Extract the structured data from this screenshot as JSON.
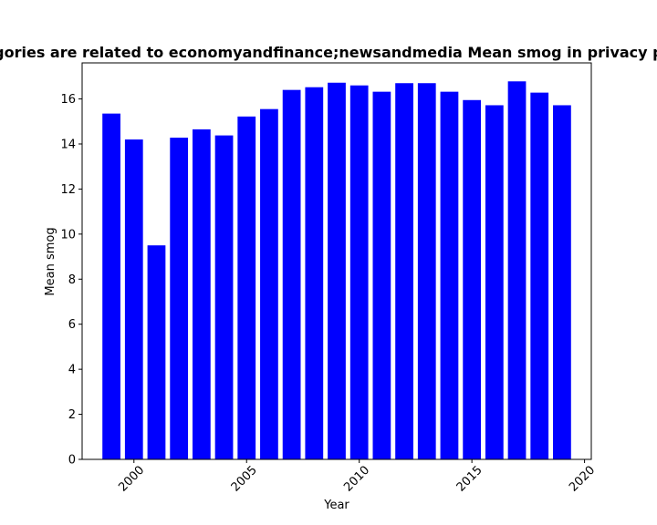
{
  "chart_data": {
    "type": "bar",
    "title": "Categories are related to economyandfinance;newsandmedia Mean smog in privacy policies",
    "xlabel": "Year",
    "ylabel": "Mean smog",
    "x": [
      1999,
      2000,
      2001,
      2002,
      2003,
      2004,
      2005,
      2006,
      2007,
      2008,
      2009,
      2010,
      2011,
      2012,
      2013,
      2014,
      2015,
      2016,
      2017,
      2018,
      2019
    ],
    "values": [
      15.35,
      14.2,
      9.5,
      14.28,
      14.65,
      14.38,
      15.22,
      15.55,
      16.4,
      16.52,
      16.72,
      16.6,
      16.32,
      16.7,
      16.7,
      16.32,
      15.95,
      15.72,
      16.78,
      16.28,
      15.72
    ],
    "xlim": [
      1997.7,
      2020.3
    ],
    "ylim": [
      0,
      17.6
    ],
    "xticks": [
      2000,
      2005,
      2010,
      2015,
      2020
    ],
    "yticks": [
      0,
      2,
      4,
      6,
      8,
      10,
      12,
      14,
      16
    ],
    "bar_color": "#0000ff",
    "grid": false,
    "legend": false
  }
}
